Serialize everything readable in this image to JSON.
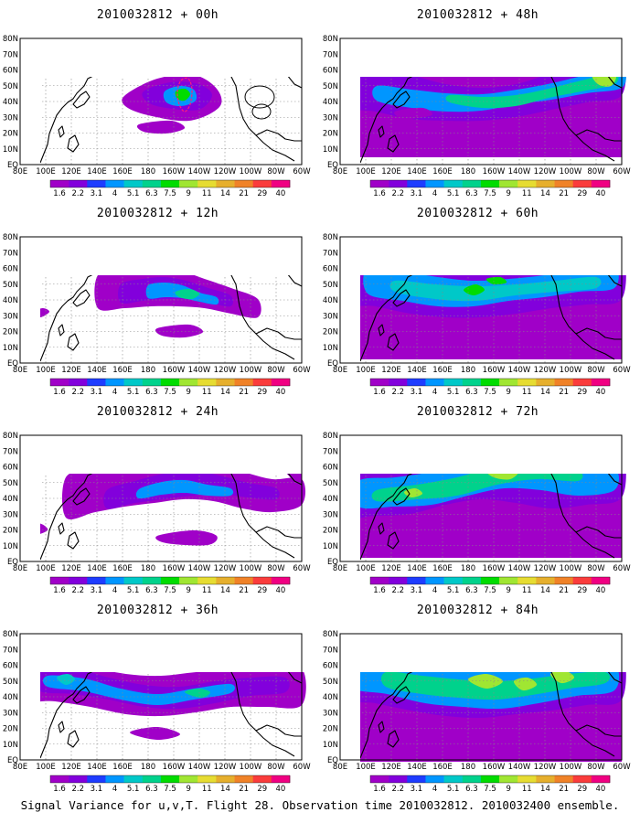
{
  "panels": [
    {
      "title": "2010032812 + 00h",
      "lead": "00h"
    },
    {
      "title": "2010032812 + 12h",
      "lead": "12h"
    },
    {
      "title": "2010032812 + 24h",
      "lead": "24h"
    },
    {
      "title": "2010032812 + 36h",
      "lead": "36h"
    },
    {
      "title": "2010032812 + 48h",
      "lead": "48h"
    },
    {
      "title": "2010032812 + 60h",
      "lead": "60h"
    },
    {
      "title": "2010032812 + 72h",
      "lead": "72h"
    },
    {
      "title": "2010032812 + 84h",
      "lead": "84h"
    }
  ],
  "lon_labels": [
    "80E",
    "100E",
    "120E",
    "140E",
    "160E",
    "180",
    "160W",
    "140W",
    "120W",
    "100W",
    "80W",
    "60W"
  ],
  "lat_labels": [
    "EQ",
    "10N",
    "20N",
    "30N",
    "40N",
    "50N",
    "60N",
    "70N",
    "80N"
  ],
  "colorbar": {
    "labels": [
      "1.6",
      "2.2",
      "3.1",
      "4",
      "5.1",
      "6.3",
      "7.5",
      "9",
      "11",
      "14",
      "21",
      "29",
      "40"
    ],
    "colors": [
      "#a000c8",
      "#8200dc",
      "#1e3cff",
      "#0096ff",
      "#00c8c8",
      "#00d28c",
      "#00dc00",
      "#a0e632",
      "#e6dc32",
      "#e6af2d",
      "#f08228",
      "#fa3c3c",
      "#f00082"
    ]
  },
  "footer": "Signal Variance for u,v,T. Flight 28. Observation time 2010032812. 2010032400 ensemble."
}
